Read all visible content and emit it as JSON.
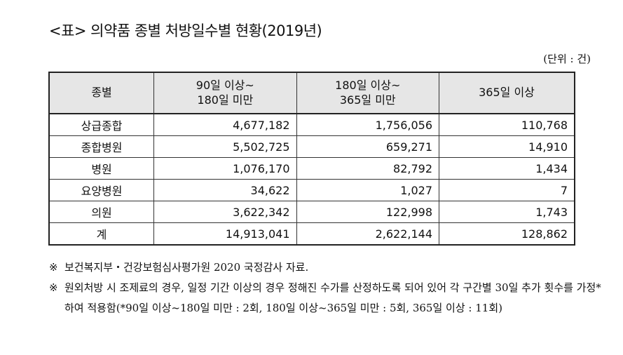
{
  "title": "<표> 의약품 종별 처방일수별 현황(2019년)",
  "unit": "(단위 : 건)",
  "table": {
    "headers": [
      {
        "line1": "종별",
        "line2": ""
      },
      {
        "line1": "90일 이상~",
        "line2": "180일 미만"
      },
      {
        "line1": "180일 이상~",
        "line2": "365일 미만"
      },
      {
        "line1": "365일 이상",
        "line2": ""
      }
    ],
    "rows": [
      {
        "category": "상급종합",
        "values": [
          "4,677,182",
          "1,756,056",
          "110,768"
        ]
      },
      {
        "category": "종합병원",
        "values": [
          "5,502,725",
          "659,271",
          "14,910"
        ]
      },
      {
        "category": "병원",
        "values": [
          "1,076,170",
          "82,792",
          "1,434"
        ]
      },
      {
        "category": "요양병원",
        "values": [
          "34,622",
          "1,027",
          "7"
        ]
      },
      {
        "category": "의원",
        "values": [
          "3,622,342",
          "122,998",
          "1,743"
        ]
      },
      {
        "category": "계",
        "values": [
          "14,913,041",
          "2,622,144",
          "128,862"
        ]
      }
    ]
  },
  "notes": [
    {
      "mark": "※",
      "text": "보건복지부・건강보험심사평가원 2020 국정감사 자료."
    },
    {
      "mark": "※",
      "text": "원외처방 시 조제료의 경우, 일정 기간 이상의 경우 정해진 수가를 산정하도록 되어 있어 각 구간별 30일 추가 횟수를 가정*하여 적용함(*90일 이상~180일 미만 : 2회, 180일 이상~365일 미만 : 5회, 365일 이상 : 11회)"
    }
  ]
}
